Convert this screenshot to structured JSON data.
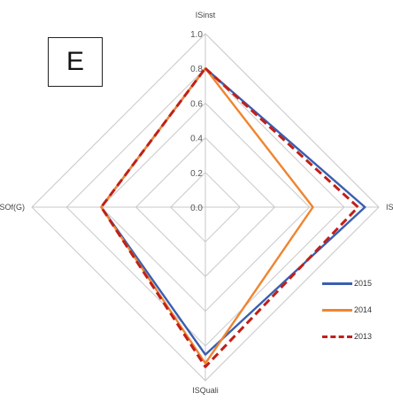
{
  "panel_label": "E",
  "chart_data": {
    "type": "radar",
    "axes": [
      "ISinst",
      "ISAces",
      "ISQuali",
      "ISOf(G)"
    ],
    "tick_labels": [
      "0.0",
      "0.2",
      "0.4",
      "0.6",
      "0.8",
      "1.0"
    ],
    "range": [
      0,
      1
    ],
    "grid": true,
    "legend_position": "bottom-right",
    "series": [
      {
        "name": "2015",
        "color": "#3a5fb0",
        "style": "solid",
        "values": [
          0.8,
          0.92,
          0.85,
          0.6
        ]
      },
      {
        "name": "2014",
        "color": "#ef8530",
        "style": "solid",
        "values": [
          0.8,
          0.62,
          0.9,
          0.6
        ]
      },
      {
        "name": "2013",
        "color": "#c0201a",
        "style": "dashed",
        "values": [
          0.8,
          0.88,
          0.92,
          0.6
        ]
      }
    ]
  }
}
